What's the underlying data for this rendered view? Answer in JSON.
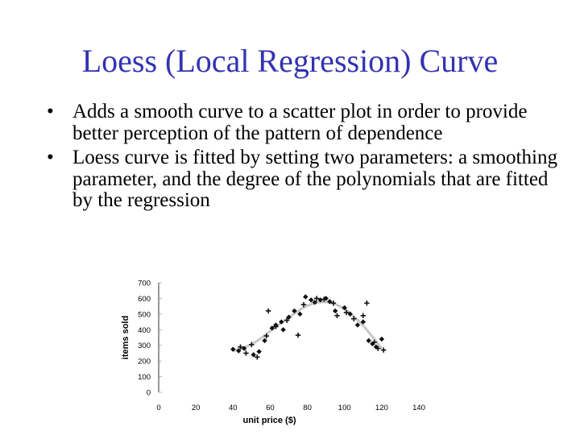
{
  "title": "Loess (Local Regression) Curve",
  "bullets": [
    {
      "marker": "•",
      "text": "Adds a smooth curve to a scatter plot in order to provide better perception of the pattern of dependence"
    },
    {
      "marker": "•",
      "text": "Loess curve is fitted by setting two parameters: a smoothing parameter, and the degree of the polynomials that are fitted by the regression"
    }
  ],
  "chart_data": {
    "type": "scatter",
    "title": "",
    "xlabel": "unit price ($)",
    "ylabel": "items sold",
    "xlim": [
      0,
      140
    ],
    "ylim": [
      0,
      700
    ],
    "x_ticks": [
      "0",
      "20",
      "40",
      "60",
      "80",
      "100",
      "120",
      "140"
    ],
    "y_ticks": [
      "0",
      "100",
      "200",
      "300",
      "400",
      "500",
      "600",
      "700"
    ],
    "grid": false,
    "colors": {
      "points": "#111111",
      "curve": "#c8c8c8",
      "axis": "#000000"
    },
    "series": [
      {
        "marker": "diamond",
        "points": [
          [
            40,
            275
          ],
          [
            43,
            265
          ],
          [
            46,
            280
          ],
          [
            51,
            240
          ],
          [
            54,
            260
          ],
          [
            57,
            330
          ],
          [
            61,
            410
          ],
          [
            63,
            430
          ],
          [
            66,
            450
          ],
          [
            67,
            400
          ],
          [
            70,
            480
          ],
          [
            73,
            520
          ],
          [
            76,
            500
          ],
          [
            79,
            610
          ],
          [
            82,
            590
          ],
          [
            84,
            575
          ],
          [
            87,
            590
          ],
          [
            90,
            600
          ],
          [
            92,
            580
          ],
          [
            95,
            520
          ],
          [
            100,
            540
          ],
          [
            103,
            500
          ],
          [
            107,
            430
          ],
          [
            110,
            450
          ],
          [
            113,
            330
          ],
          [
            115,
            310
          ],
          [
            117,
            290
          ],
          [
            120,
            340
          ]
        ]
      },
      {
        "marker": "plus",
        "points": [
          [
            44,
            290
          ],
          [
            47,
            250
          ],
          [
            50,
            305
          ],
          [
            53,
            225
          ],
          [
            58,
            360
          ],
          [
            59,
            520
          ],
          [
            63,
            420
          ],
          [
            69,
            460
          ],
          [
            75,
            365
          ],
          [
            78,
            560
          ],
          [
            85,
            600
          ],
          [
            89,
            595
          ],
          [
            94,
            570
          ],
          [
            96,
            490
          ],
          [
            101,
            510
          ],
          [
            105,
            470
          ],
          [
            110,
            490
          ],
          [
            112,
            570
          ],
          [
            116,
            320
          ],
          [
            118,
            280
          ],
          [
            121,
            270
          ]
        ]
      }
    ],
    "loess_curve": [
      [
        40,
        265
      ],
      [
        50,
        300
      ],
      [
        60,
        390
      ],
      [
        70,
        480
      ],
      [
        80,
        560
      ],
      [
        90,
        585
      ],
      [
        100,
        540
      ],
      [
        110,
        430
      ],
      [
        120,
        280
      ]
    ]
  }
}
